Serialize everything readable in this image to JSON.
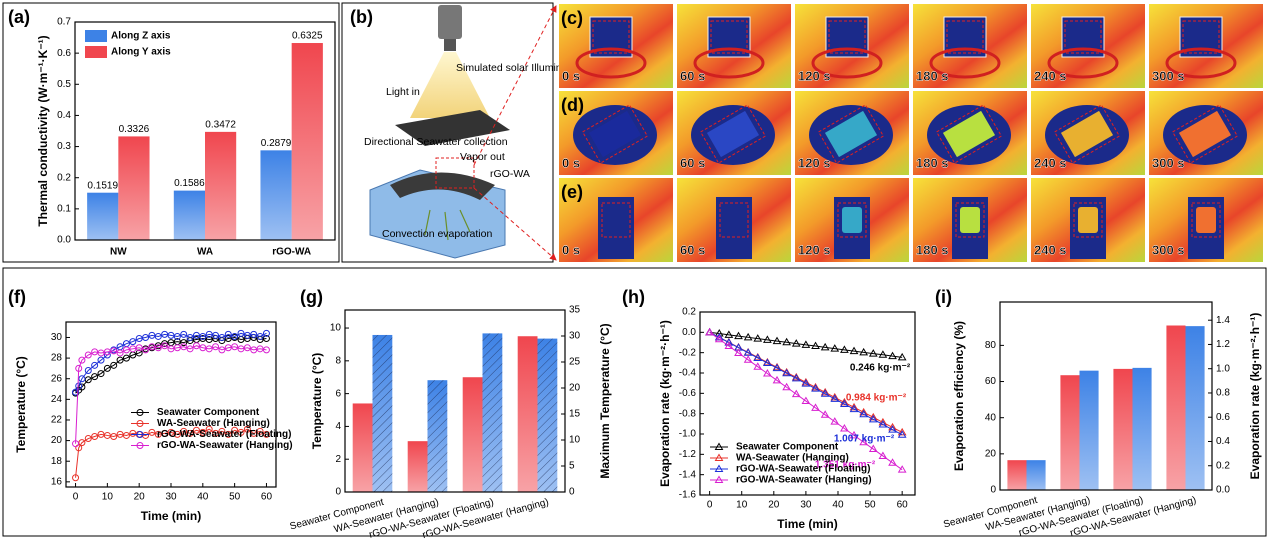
{
  "chart_data": [
    {
      "type": "bar",
      "label": "(a)",
      "ylabel": "Thermal conductivity (W·m⁻¹·K⁻¹)",
      "categories": [
        "NW",
        "WA",
        "rGO-WA"
      ],
      "series": [
        {
          "name": "Along Z axis",
          "color": "#3d82e6",
          "values": [
            0.1519,
            0.1586,
            0.2879
          ]
        },
        {
          "name": "Along Y axis",
          "color": "#f0464e",
          "values": [
            0.3326,
            0.3472,
            0.6325
          ]
        }
      ],
      "ylim": [
        0,
        0.7
      ],
      "yticks": [
        {
          "value": 0,
          "label": "0.0"
        },
        0.1,
        0.2,
        0.3,
        0.4,
        0.5,
        0.6,
        0.7
      ],
      "legend": "upper left",
      "data_labels": true
    },
    {
      "type": "line",
      "label": "(f)",
      "xlabel": "Time (min)",
      "ylabel": "Temperature (°C)",
      "marker": "circle",
      "x": [
        0,
        1,
        2,
        4,
        6,
        8,
        10,
        12,
        14,
        16,
        18,
        20,
        22,
        24,
        26,
        28,
        30,
        32,
        34,
        36,
        38,
        40,
        42,
        44,
        46,
        48,
        50,
        52,
        54,
        56,
        58,
        60
      ],
      "series": [
        {
          "name": "Seawater Component",
          "color": "#000000",
          "values": [
            24.6,
            24.9,
            25.2,
            25.9,
            26.2,
            26.5,
            27.0,
            27.3,
            27.8,
            28.0,
            28.3,
            28.5,
            28.9,
            29.0,
            29.2,
            29.4,
            29.5,
            29.6,
            29.5,
            29.7,
            29.8,
            29.9,
            29.8,
            29.9,
            29.7,
            29.9,
            30.0,
            29.8,
            29.9,
            30.0,
            29.8,
            29.9
          ]
        },
        {
          "name": "WA-Seawater (Hanging)",
          "color": "#e8322a",
          "values": [
            16.4,
            19.3,
            19.8,
            20.2,
            20.4,
            20.6,
            20.5,
            20.4,
            20.6,
            20.5,
            20.7,
            20.6,
            20.5,
            20.8,
            20.6,
            20.7,
            20.8,
            20.6,
            20.9,
            20.7,
            21.0,
            20.8,
            21.1,
            20.7,
            20.9,
            20.6,
            21.0,
            20.8,
            21.1,
            20.7,
            20.9,
            20.6
          ]
        },
        {
          "name": "rGO-WA-Seawater (Floating)",
          "color": "#1c2fd8",
          "values": [
            24.7,
            25.3,
            26.0,
            26.8,
            27.3,
            27.8,
            28.3,
            28.8,
            29.1,
            29.4,
            29.6,
            29.9,
            30.0,
            30.2,
            30.1,
            30.3,
            30.2,
            30.1,
            30.3,
            30.0,
            30.2,
            30.1,
            30.3,
            30.2,
            30.0,
            30.3,
            30.1,
            30.4,
            30.2,
            30.3,
            30.1,
            30.4
          ]
        },
        {
          "name": "rGO-WA-Seawater (Hanging)",
          "color": "#d81fd0",
          "values": [
            19.7,
            27.0,
            27.8,
            28.3,
            28.6,
            28.5,
            28.6,
            28.7,
            28.5,
            28.8,
            28.9,
            29.0,
            28.8,
            29.1,
            29.0,
            29.2,
            28.9,
            29.0,
            29.1,
            28.9,
            29.2,
            29.0,
            28.9,
            29.1,
            28.8,
            29.0,
            29.1,
            28.9,
            29.0,
            28.8,
            28.9,
            28.8
          ]
        }
      ],
      "xlim": [
        -3,
        63
      ],
      "xticks": [
        0,
        10,
        20,
        30,
        40,
        50,
        60
      ],
      "ylim": [
        15.5,
        31.5
      ],
      "yticks": [
        16,
        18,
        20,
        22,
        24,
        26,
        28,
        30
      ],
      "legend": "center right"
    },
    {
      "type": "bar",
      "label": "(g)",
      "ylabel": "Temperature (°C)",
      "y2label": "Maximum Temperature (°C)",
      "categories": [
        "Seawater Component",
        "WA-Seawater (Hanging)",
        "rGO-WA-Seawater (Floating)",
        "rGO-WA-Seawater (Hanging)"
      ],
      "series": [
        {
          "color": "#f0464e",
          "values": [
            5.4,
            3.1,
            7.0,
            9.5
          ]
        },
        {
          "color": "#3d82e6",
          "axis": "y2",
          "values": [
            30.2,
            21.5,
            30.5,
            29.5
          ]
        }
      ],
      "ylim": [
        0,
        11.1
      ],
      "yticks": [
        0,
        2,
        4,
        6,
        8,
        10
      ],
      "y2lim": [
        0,
        35
      ],
      "y2ticks": [
        0,
        5,
        10,
        15,
        20,
        25,
        30,
        35
      ],
      "hatch": true
    },
    {
      "type": "line",
      "label": "(h)",
      "xlabel": "Time (min)",
      "ylabel": "Evaporation rate (kg·m⁻²·h⁻¹)",
      "marker": "triangle",
      "x": [
        0,
        3,
        6,
        9,
        12,
        15,
        18,
        21,
        24,
        27,
        30,
        33,
        36,
        39,
        42,
        45,
        48,
        51,
        54,
        57,
        60
      ],
      "series": [
        {
          "name": "Seawater Component",
          "color": "#000000",
          "values": [
            0,
            -0.012,
            -0.025,
            -0.037,
            -0.049,
            -0.062,
            -0.074,
            -0.086,
            -0.098,
            -0.111,
            -0.123,
            -0.135,
            -0.148,
            -0.16,
            -0.172,
            -0.185,
            -0.197,
            -0.209,
            -0.221,
            -0.234,
            -0.246
          ]
        },
        {
          "name": "WA-Seawater (Hanging)",
          "color": "#e8322a",
          "values": [
            0,
            -0.049,
            -0.098,
            -0.148,
            -0.197,
            -0.246,
            -0.295,
            -0.344,
            -0.394,
            -0.443,
            -0.492,
            -0.541,
            -0.59,
            -0.64,
            -0.689,
            -0.738,
            -0.787,
            -0.836,
            -0.886,
            -0.935,
            -0.984
          ]
        },
        {
          "name": "rGO-WA-Seawater (Floating)",
          "color": "#1c2fd8",
          "values": [
            0,
            -0.05,
            -0.101,
            -0.151,
            -0.201,
            -0.252,
            -0.302,
            -0.352,
            -0.403,
            -0.453,
            -0.504,
            -0.554,
            -0.604,
            -0.655,
            -0.705,
            -0.755,
            -0.806,
            -0.856,
            -0.906,
            -0.957,
            -1.007
          ]
        },
        {
          "name": "rGO-WA-Seawater (Hanging)",
          "color": "#d81fd0",
          "values": [
            0,
            -0.068,
            -0.135,
            -0.203,
            -0.27,
            -0.338,
            -0.405,
            -0.473,
            -0.54,
            -0.608,
            -0.676,
            -0.743,
            -0.811,
            -0.878,
            -0.946,
            -1.013,
            -1.081,
            -1.148,
            -1.216,
            -1.283,
            -1.351
          ]
        }
      ],
      "annotations": [
        {
          "text": "0.246 kg·m⁻²",
          "color": "#000000"
        },
        {
          "text": "0.984 kg·m⁻²",
          "color": "#e8322a"
        },
        {
          "text": "1.007 kg·m⁻²",
          "color": "#1c2fd8"
        },
        {
          "text": "1.351 kg·m⁻²",
          "color": "#d81fd0"
        }
      ],
      "xlim": [
        -3,
        64
      ],
      "xticks": [
        0,
        10,
        20,
        30,
        40,
        50,
        60
      ],
      "ylim": [
        -1.6,
        0.2
      ],
      "yticks": [
        0.2,
        {
          "value": 0,
          "label": "0.0"
        },
        -0.2,
        -0.4,
        -0.6,
        -0.8,
        {
          "value": -1,
          "label": "-1.0"
        },
        -1.2,
        -1.4,
        -1.6
      ],
      "legend": "lower left"
    },
    {
      "type": "bar",
      "label": "(i)",
      "ylabel": "Evaporation efficiency (%)",
      "y2label": "Evaporation rate (kg·m⁻²·h⁻¹)",
      "categories": [
        "Seawater Component",
        "WA-Seawater (Hanging)",
        "rGO-WA-Seawater (Floating)",
        "rGO-WA-Seawater (Hanging)"
      ],
      "series": [
        {
          "color": "#f0464e",
          "values": [
            16.5,
            63.5,
            67,
            91
          ]
        },
        {
          "color": "#3d82e6",
          "axis": "y2",
          "values": [
            0.246,
            0.984,
            1.007,
            1.351
          ]
        }
      ],
      "ylim": [
        0,
        104
      ],
      "yticks": [
        0,
        20,
        40,
        60,
        80
      ],
      "y2lim": [
        0,
        1.55
      ],
      "y2ticks": [
        {
          "value": 0,
          "label": "0.0"
        },
        0.2,
        0.4,
        0.6,
        0.8,
        {
          "value": 1,
          "label": "1.0"
        },
        1.2,
        1.4
      ]
    }
  ],
  "diagram": {
    "label": "(b)",
    "solar": "Simulated solar Illumination",
    "light": "Light in",
    "collection": "Directional Seawater collection",
    "vapor": "Vapor out",
    "material": "rGO-WA",
    "convection": "Convection evaporation"
  },
  "thermal": {
    "rows": [
      "(c)",
      "(d)",
      "(e)"
    ],
    "times": [
      "0 s",
      "60 s",
      "120 s",
      "180 s",
      "240 s",
      "300 s"
    ]
  }
}
